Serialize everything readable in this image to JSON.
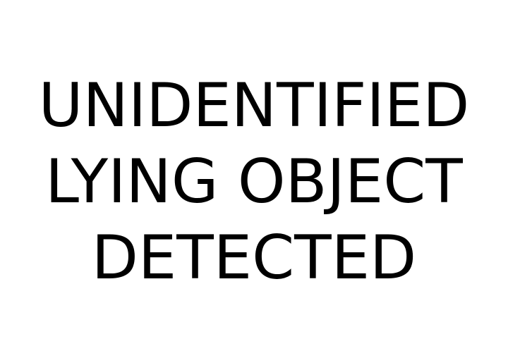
{
  "message": {
    "lines": [
      "UNIDENTIFIED",
      "LYING OBJECT",
      "DETECTED"
    ]
  },
  "colors": {
    "background": "#ffffff",
    "text": "#000000"
  }
}
